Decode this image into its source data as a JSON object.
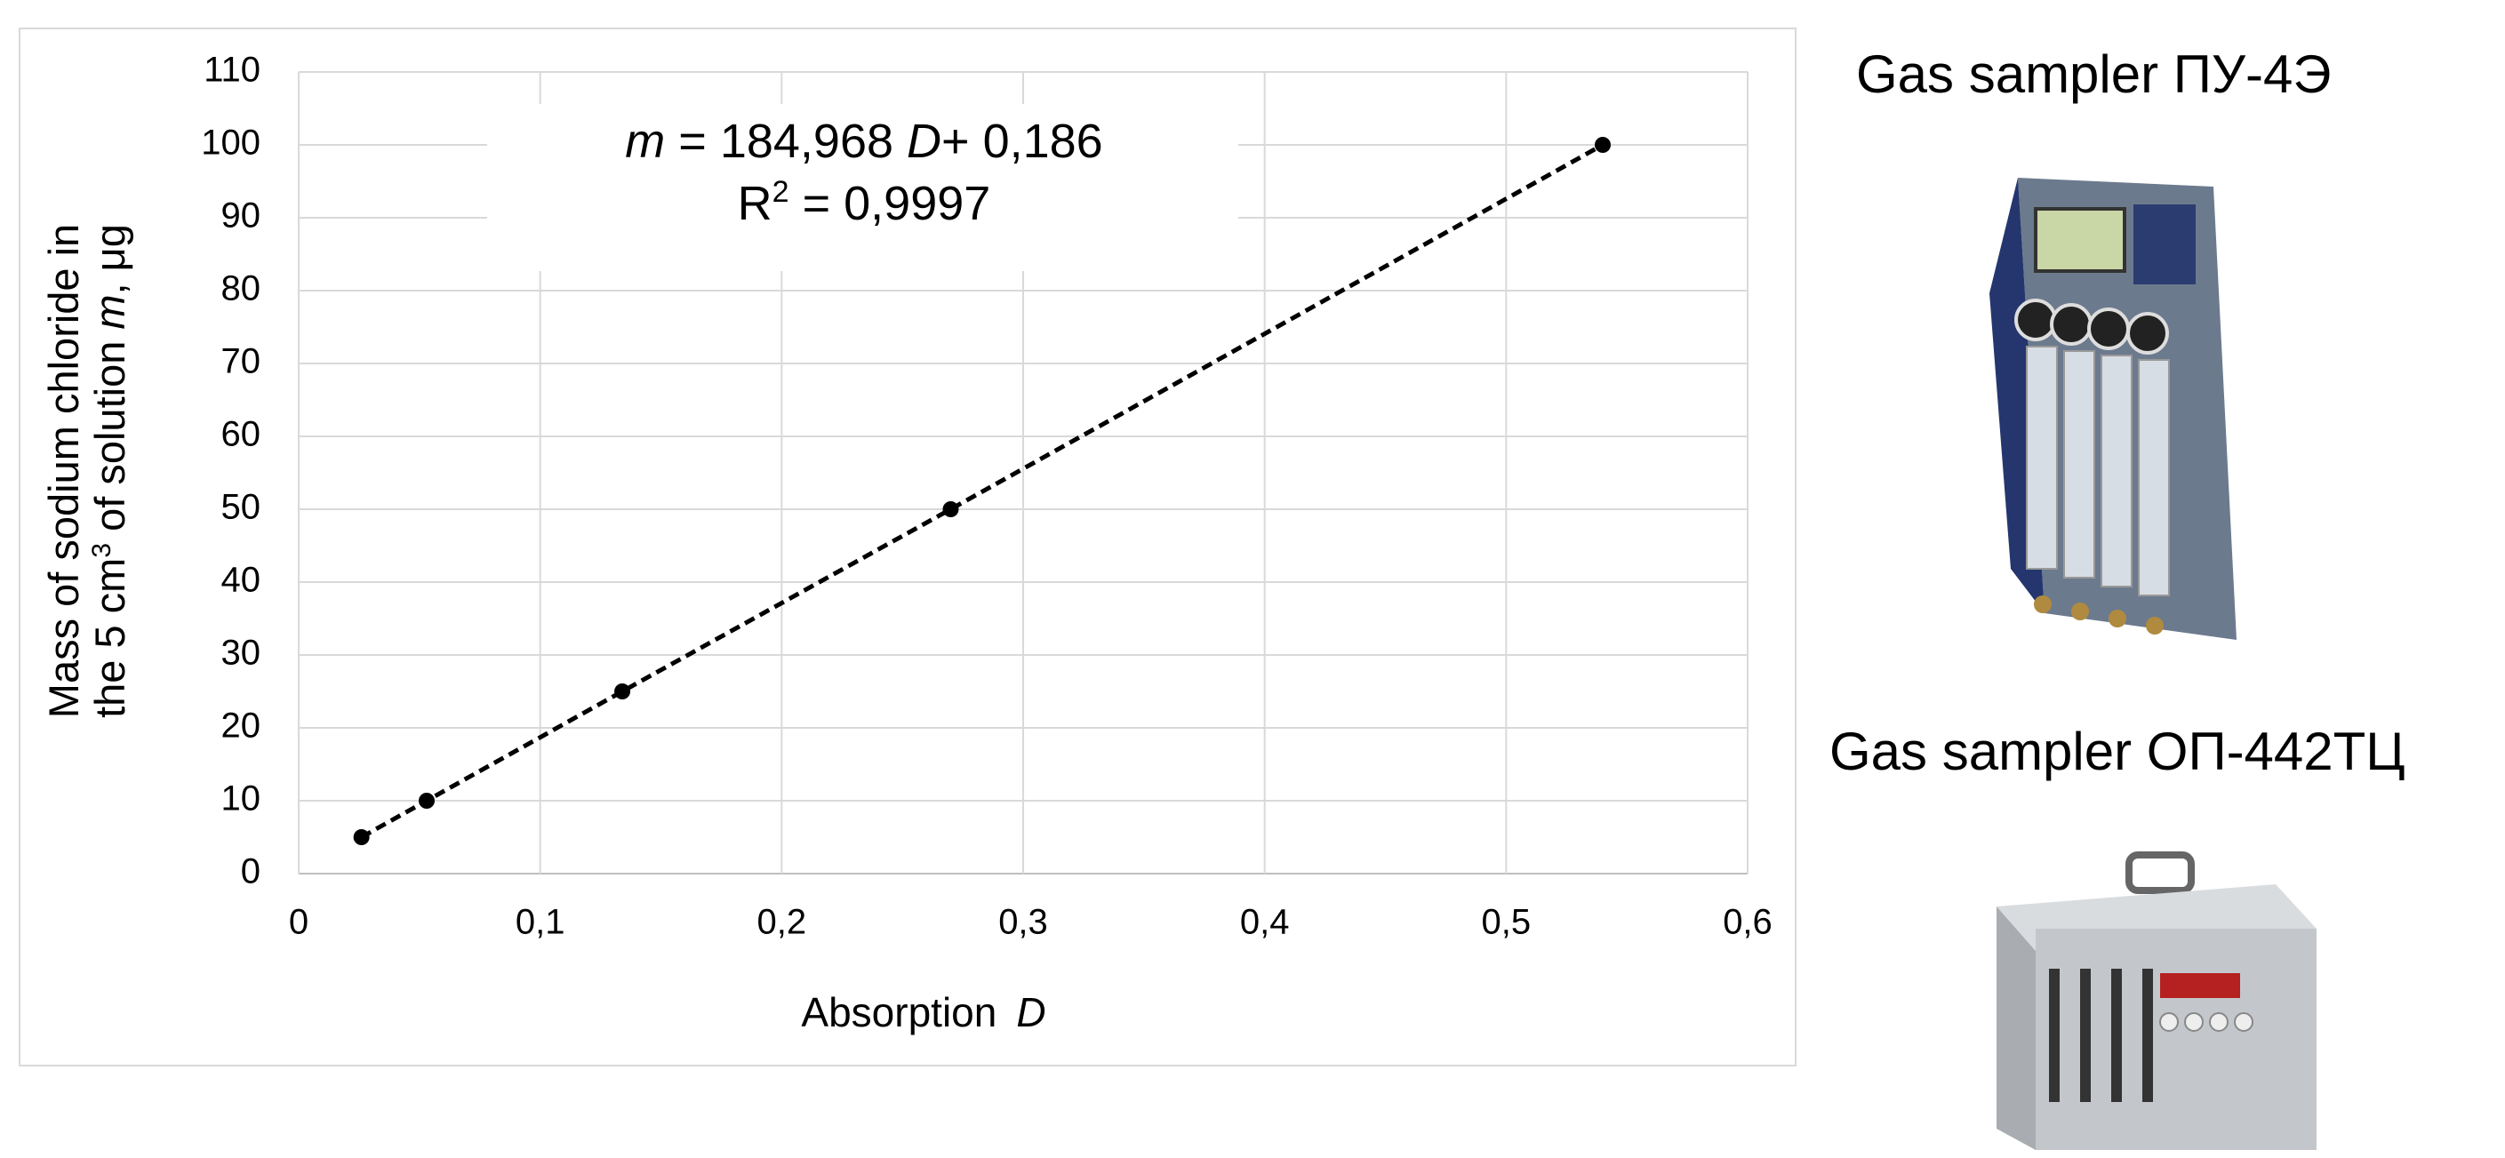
{
  "chart_data": {
    "type": "scatter",
    "x": [
      0.026,
      0.053,
      0.134,
      0.27,
      0.54
    ],
    "values": [
      5,
      10,
      25,
      50,
      100
    ],
    "color": "#000000",
    "trendline": true,
    "grid": true,
    "xlim": [
      0,
      0.6
    ],
    "xticks": [
      0,
      {
        "value": 0.1,
        "label": "0,1"
      },
      {
        "value": 0.2,
        "label": "0,2"
      },
      {
        "value": 0.3,
        "label": "0,3"
      },
      {
        "value": 0.4,
        "label": "0,4"
      },
      {
        "value": 0.5,
        "label": "0,5"
      },
      {
        "value": 0.6,
        "label": "0,6"
      }
    ],
    "ylim": [
      0,
      110
    ],
    "yticks": [
      0,
      10,
      20,
      30,
      40,
      50,
      60,
      70,
      80,
      90,
      100,
      110
    ],
    "x_label": [
      "Absorption",
      "D"
    ],
    "y_label": {
      "line1": "Mass of sodium chloride in",
      "line2": [
        "the 5 cm",
        "3",
        " of solution ",
        "m",
        ", μg"
      ]
    },
    "annotation": {
      "line1": [
        "m",
        " = 184,968 ",
        "D",
        "+ 0,186"
      ],
      "line2": [
        "R",
        "2",
        " = 0,9997"
      ]
    }
  },
  "panel": {
    "captions": [
      "Gas sampler ПУ-4Э",
      "Gas sampler ОП-442ТЦ"
    ]
  }
}
